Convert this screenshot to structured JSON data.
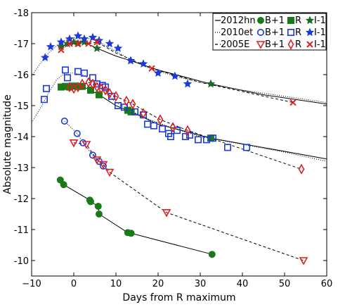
{
  "chart_data": {
    "type": "scatter",
    "xlabel": "Days from R maximum",
    "ylabel": "Absolute magnitude",
    "xlim": [
      -10,
      60
    ],
    "ylim": [
      -9.5,
      -18
    ],
    "y_inverted": true,
    "xticks": [
      -10,
      0,
      10,
      20,
      30,
      40,
      50,
      60
    ],
    "yticks": [
      -10,
      -11,
      -12,
      -13,
      -14,
      -15,
      -16,
      -17,
      -18
    ],
    "xtick_labels": [
      "−10",
      "0",
      "10",
      "20",
      "30",
      "40",
      "50",
      "60"
    ],
    "ytick_labels": [
      "-10",
      "-11",
      "-12",
      "-13",
      "-14",
      "-15",
      "-16",
      "-17",
      "-18"
    ],
    "grid": false,
    "legend_position": "top-right",
    "legend": [
      {
        "object": "2012hn",
        "line": "solid",
        "entries": [
          "B+1",
          "R",
          "I-1"
        ]
      },
      {
        "object": "2010et",
        "line": "dotted",
        "entries": [
          "B+1",
          "R",
          "I-1"
        ]
      },
      {
        "object": "2005E",
        "line": "dashed",
        "entries": [
          "B+1",
          "R",
          "I-1"
        ]
      }
    ],
    "series": [
      {
        "name": "2012hn B+1",
        "marker": "circle",
        "filled": true,
        "color": "#1a7a1a",
        "x": [
          -3.2,
          -2.4,
          3.8,
          4.0,
          5.8,
          6.0,
          12.8,
          13.6,
          32.8
        ],
        "y": [
          -12.6,
          -12.45,
          -11.95,
          -11.9,
          -11.75,
          -11.5,
          -10.9,
          -10.88,
          -10.2
        ]
      },
      {
        "name": "2012hn R",
        "marker": "square",
        "filled": true,
        "color": "#1a7a1a",
        "x": [
          -3.0,
          -2.0,
          -1.0,
          0.0,
          1.0,
          2.0,
          4.0,
          6.0,
          12.8,
          13.6,
          32.5
        ],
        "y": [
          -15.6,
          -15.62,
          -15.6,
          -15.63,
          -15.62,
          -15.62,
          -15.5,
          -15.35,
          -14.85,
          -14.8,
          -13.95
        ]
      },
      {
        "name": "2012hn I-1",
        "marker": "star",
        "filled": true,
        "color": "#1a6a2a",
        "x": [
          -3.0,
          -1.5,
          0.0,
          1.0,
          2.5,
          5.5,
          13.5,
          32.5
        ],
        "y": [
          -16.9,
          -17.0,
          -17.05,
          -17.0,
          -17.05,
          -16.85,
          -16.45,
          -15.7
        ]
      },
      {
        "name": "2010et B+1",
        "marker": "circle",
        "filled": false,
        "color": "#1a3adf",
        "x": [
          -2.2,
          0.8,
          2.2,
          4.5,
          6.0,
          7.0
        ],
        "y": [
          -14.5,
          -14.1,
          -13.8,
          -13.4,
          -13.2,
          -13.05
        ]
      },
      {
        "name": "2010et R",
        "marker": "square",
        "filled": false,
        "color": "#1a3adf",
        "x": [
          -7.0,
          -6.5,
          -2.0,
          -1.5,
          1.0,
          2.5,
          4.5,
          5.5,
          6.8,
          7.5,
          9.0,
          10.5,
          12.0,
          14.5,
          16.5,
          17.5,
          19.0,
          21.0,
          22.5,
          23.0,
          24.5,
          26.5,
          27.5,
          29.5,
          31.5,
          33.0,
          36.5,
          41.0
        ],
        "y": [
          -15.2,
          -15.55,
          -16.15,
          -15.9,
          -16.1,
          -16.05,
          -15.9,
          -15.7,
          -15.65,
          -15.6,
          -15.3,
          -15.0,
          -14.95,
          -14.8,
          -14.7,
          -14.4,
          -14.35,
          -14.25,
          -14.1,
          -14.0,
          -14.2,
          -14.0,
          -14.05,
          -13.9,
          -13.9,
          -13.95,
          -13.65,
          -13.65
        ]
      },
      {
        "name": "2010et I-1",
        "marker": "star",
        "filled": false,
        "color": "#1a3adf",
        "x": [
          -6.8,
          -5.5,
          -3.0,
          -1.0,
          1.0,
          2.5,
          4.5,
          6.0,
          8.5,
          10.5,
          13.5,
          16.5,
          20.0,
          24.0,
          27.0
        ],
        "y": [
          -16.55,
          -16.9,
          -17.05,
          -17.15,
          -17.25,
          -17.15,
          -17.2,
          -17.1,
          -17.0,
          -16.85,
          -16.45,
          -16.35,
          -16.05,
          -15.95,
          -15.7
        ]
      },
      {
        "name": "2005E B+1",
        "marker": "triangle-down",
        "filled": false,
        "color": "#e02020",
        "x": [
          0.0,
          3.0,
          5.5,
          7.0,
          8.5,
          22.0,
          54.5
        ],
        "y": [
          -13.8,
          -13.75,
          -13.25,
          -13.1,
          -12.85,
          -11.55,
          -10.0
        ]
      },
      {
        "name": "2005E R",
        "marker": "diamond",
        "filled": false,
        "color": "#e02020",
        "x": [
          -1.0,
          0.0,
          1.0,
          2.0,
          3.5,
          4.5,
          5.5,
          6.5,
          7.5,
          8.5,
          10.0,
          12.5,
          14.0,
          16.5,
          20.5,
          23.5,
          27.0,
          54.0
        ],
        "y": [
          -15.6,
          -15.55,
          -15.6,
          -15.7,
          -15.75,
          -15.7,
          -15.6,
          -15.55,
          -15.5,
          -15.4,
          -15.3,
          -15.15,
          -15.05,
          -14.75,
          -14.55,
          -14.3,
          -14.2,
          -12.95
        ]
      },
      {
        "name": "2005E I-1",
        "marker": "x",
        "filled": false,
        "color": "#e02020",
        "x": [
          -3.0,
          -1.0,
          1.0,
          3.5,
          5.5,
          18.5,
          52.0
        ],
        "y": [
          -16.8,
          -17.0,
          -17.0,
          -17.0,
          -17.05,
          -16.2,
          -15.1
        ]
      }
    ],
    "fits": [
      {
        "object": "2012hn",
        "style": "solid",
        "x": [
          -3.2,
          -2.4,
          3.8,
          4.0,
          5.8,
          6.0,
          12.8,
          13.6,
          32.8
        ],
        "y": [
          -12.6,
          -12.45,
          -11.95,
          -11.9,
          -11.75,
          -11.5,
          -10.9,
          -10.88,
          -10.2
        ]
      },
      {
        "object": "2012hn",
        "style": "solid",
        "x": [
          -3.0,
          -2.0,
          0.0,
          2.0,
          4.0,
          6.0,
          10.0,
          13.6,
          20.0,
          32.5,
          60.0
        ],
        "y": [
          -15.6,
          -15.62,
          -15.63,
          -15.62,
          -15.5,
          -15.35,
          -15.0,
          -14.8,
          -14.4,
          -13.95,
          -13.28
        ]
      },
      {
        "object": "2012hn",
        "style": "solid",
        "x": [
          -3.0,
          -1.5,
          0.0,
          2.5,
          5.5,
          10.0,
          13.5,
          20.0,
          32.5,
          45.0,
          60.0
        ],
        "y": [
          -16.9,
          -17.0,
          -17.05,
          -17.05,
          -16.85,
          -16.6,
          -16.45,
          -16.15,
          -15.7,
          -15.35,
          -15.05
        ]
      },
      {
        "object": "2010et",
        "style": "dotted",
        "x": [
          -10.0,
          -8.0,
          -6.0,
          -4.0,
          -2.0,
          0.0,
          2.0,
          4.0,
          6.0,
          8.0,
          10.0,
          14.0,
          18.0,
          24.0,
          30.0,
          40.0,
          50.0,
          60.0
        ],
        "y": [
          -14.45,
          -14.9,
          -15.4,
          -15.85,
          -16.05,
          -16.05,
          -16.0,
          -15.85,
          -15.65,
          -15.4,
          -15.1,
          -14.8,
          -14.55,
          -14.25,
          -14.0,
          -13.75,
          -13.5,
          -13.2
        ]
      },
      {
        "object": "2010et",
        "style": "dotted",
        "x": [
          -10.0,
          -8.0,
          -6.0,
          -4.0,
          -2.0,
          0.0,
          2.0,
          4.0,
          6.0,
          8.0,
          10.0,
          14.0,
          18.0,
          24.0,
          30.0,
          40.0,
          50.0,
          60.0
        ],
        "y": [
          -15.95,
          -16.35,
          -16.7,
          -16.95,
          -17.1,
          -17.2,
          -17.2,
          -17.15,
          -17.05,
          -16.9,
          -16.75,
          -16.45,
          -16.2,
          -15.95,
          -15.75,
          -15.5,
          -15.3,
          -15.1
        ]
      },
      {
        "object": "2010et",
        "style": "dotted",
        "x": [
          -2.2,
          0.8,
          2.2,
          4.5,
          6.0,
          7.0
        ],
        "y": [
          -14.5,
          -14.1,
          -13.8,
          -13.4,
          -13.2,
          -13.05
        ]
      },
      {
        "object": "2005E",
        "style": "dashed",
        "x": [
          0.0,
          3.0,
          5.5,
          7.0,
          8.5,
          22.0,
          54.5
        ],
        "y": [
          -13.8,
          -13.75,
          -13.25,
          -13.1,
          -12.85,
          -11.55,
          -10.0
        ]
      },
      {
        "object": "2005E",
        "style": "dashed",
        "x": [
          -1.0,
          1.0,
          3.5,
          6.5,
          10.0,
          14.0,
          20.5,
          27.0,
          54.0
        ],
        "y": [
          -15.6,
          -15.6,
          -15.75,
          -15.55,
          -15.3,
          -15.05,
          -14.55,
          -14.2,
          -12.95
        ]
      },
      {
        "object": "2005E",
        "style": "dashed",
        "x": [
          -3.0,
          -1.0,
          1.0,
          3.5,
          5.5,
          10.0,
          18.5,
          30.0,
          52.0
        ],
        "y": [
          -16.8,
          -17.0,
          -17.0,
          -17.0,
          -17.05,
          -16.7,
          -16.2,
          -15.75,
          -15.1
        ]
      }
    ]
  }
}
